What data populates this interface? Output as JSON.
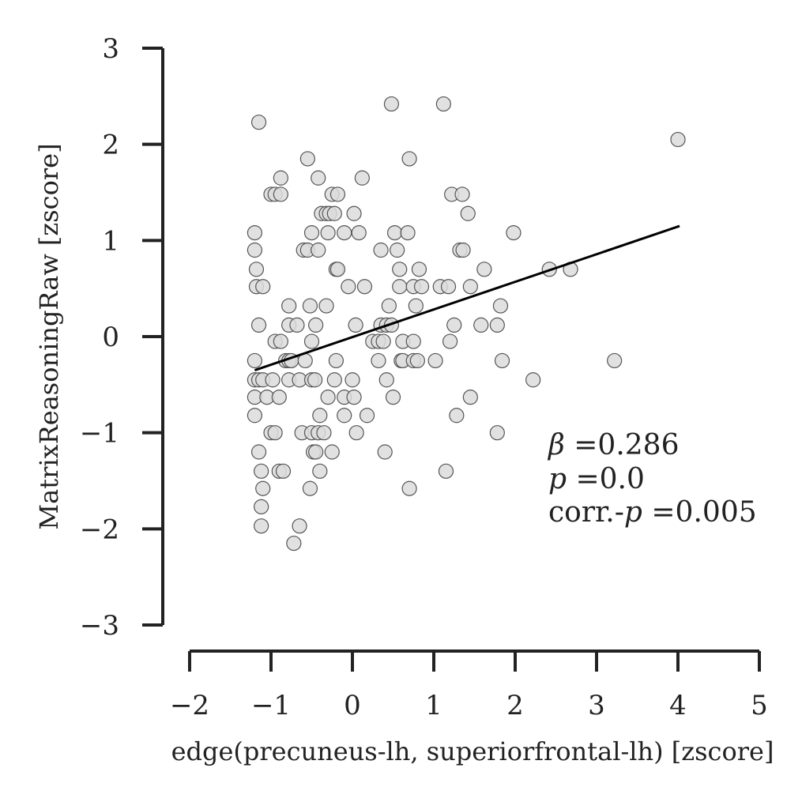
{
  "chart_data": {
    "type": "scatter",
    "xlabel": "edge(precuneus-lh, superiorfrontal-lh) [zscore]",
    "ylabel": "MatrixReasoningRaw [zscore]",
    "xlim": [
      -2,
      5
    ],
    "ylim": [
      -3,
      3
    ],
    "xticks": [
      -2,
      -1,
      0,
      1,
      2,
      3,
      4,
      5
    ],
    "yticks": [
      -3,
      -2,
      -1,
      0,
      1,
      2,
      3
    ],
    "xtick_labels": [
      "−2",
      "−1",
      "0",
      "1",
      "2",
      "3",
      "4",
      "5"
    ],
    "ytick_labels": [
      "−3",
      "−2",
      "−1",
      "0",
      "1",
      "2",
      "3"
    ],
    "regression_line": {
      "x": [
        -1.2,
        4.02
      ],
      "y": [
        -0.35,
        1.15
      ]
    },
    "annotation": {
      "beta_symbol": "β",
      "beta_value": " =0.286",
      "p_symbol": "p",
      "p_value": " =0.0",
      "corr_prefix": "corr.-",
      "corr_symbol": "p",
      "corr_value": " =0.005"
    },
    "colors": {
      "marker_fill": "#dcdcdc",
      "marker_edge": "#555555",
      "line": "#000000",
      "axis": "#222222"
    },
    "points": [
      [
        -1.2,
        1.08
      ],
      [
        -1.2,
        0.9
      ],
      [
        -1.18,
        0.7
      ],
      [
        -1.18,
        0.52
      ],
      [
        -1.15,
        0.12
      ],
      [
        -1.2,
        -0.25
      ],
      [
        -1.2,
        -0.45
      ],
      [
        -1.15,
        -0.45
      ],
      [
        -1.2,
        -0.63
      ],
      [
        -1.2,
        -0.82
      ],
      [
        -1.15,
        -1.2
      ],
      [
        -1.12,
        -1.4
      ],
      [
        -1.1,
        -1.58
      ],
      [
        -1.12,
        -1.77
      ],
      [
        -1.12,
        -1.97
      ],
      [
        -1.1,
        0.52
      ],
      [
        -1.15,
        2.23
      ],
      [
        -1.1,
        -0.45
      ],
      [
        -1.05,
        -0.63
      ],
      [
        -1.0,
        1.48
      ],
      [
        -1.0,
        -1.0
      ],
      [
        -0.98,
        -0.45
      ],
      [
        -0.95,
        1.48
      ],
      [
        -0.95,
        -0.05
      ],
      [
        -0.95,
        -1.0
      ],
      [
        -0.9,
        -0.63
      ],
      [
        -0.9,
        -1.4
      ],
      [
        -0.88,
        1.65
      ],
      [
        -0.88,
        1.48
      ],
      [
        -0.88,
        -0.05
      ],
      [
        -0.85,
        -1.4
      ],
      [
        -0.82,
        -0.25
      ],
      [
        -0.78,
        0.32
      ],
      [
        -0.78,
        0.12
      ],
      [
        -0.78,
        -0.25
      ],
      [
        -0.78,
        -0.45
      ],
      [
        -0.75,
        -0.25
      ],
      [
        -0.72,
        -2.15
      ],
      [
        -0.68,
        0.12
      ],
      [
        -0.65,
        -1.97
      ],
      [
        -0.65,
        -0.45
      ],
      [
        -0.62,
        -1.0
      ],
      [
        -0.6,
        0.9
      ],
      [
        -0.58,
        -0.25
      ],
      [
        -0.55,
        0.9
      ],
      [
        -0.55,
        1.85
      ],
      [
        -0.52,
        0.32
      ],
      [
        -0.52,
        -1.58
      ],
      [
        -0.5,
        -0.05
      ],
      [
        -0.5,
        -0.45
      ],
      [
        -0.5,
        -1.0
      ],
      [
        -0.5,
        1.08
      ],
      [
        -0.48,
        -1.2
      ],
      [
        -0.46,
        -0.45
      ],
      [
        -0.45,
        0.12
      ],
      [
        -0.45,
        -1.2
      ],
      [
        -0.42,
        1.65
      ],
      [
        -0.42,
        0.9
      ],
      [
        -0.42,
        -1.0
      ],
      [
        -0.4,
        -0.82
      ],
      [
        -0.4,
        -1.4
      ],
      [
        -0.38,
        1.28
      ],
      [
        -0.35,
        -1.0
      ],
      [
        -0.32,
        1.28
      ],
      [
        -0.32,
        0.32
      ],
      [
        -0.3,
        1.08
      ],
      [
        -0.3,
        -0.63
      ],
      [
        -0.28,
        1.28
      ],
      [
        -0.25,
        1.48
      ],
      [
        -0.25,
        -1.2
      ],
      [
        -0.22,
        1.28
      ],
      [
        -0.22,
        -0.45
      ],
      [
        -0.2,
        0.7
      ],
      [
        -0.18,
        1.48
      ],
      [
        -0.18,
        0.7
      ],
      [
        -0.2,
        -0.25
      ],
      [
        -0.1,
        1.08
      ],
      [
        -0.1,
        -0.63
      ],
      [
        -0.1,
        -0.82
      ],
      [
        -0.05,
        0.52
      ],
      [
        0.0,
        -0.45
      ],
      [
        0.02,
        1.28
      ],
      [
        0.02,
        -0.63
      ],
      [
        0.04,
        0.12
      ],
      [
        0.05,
        -1.0
      ],
      [
        0.08,
        1.08
      ],
      [
        0.12,
        1.65
      ],
      [
        0.15,
        0.52
      ],
      [
        0.18,
        -0.82
      ],
      [
        0.25,
        -0.05
      ],
      [
        0.32,
        -0.05
      ],
      [
        0.32,
        -0.25
      ],
      [
        0.35,
        0.9
      ],
      [
        0.35,
        0.12
      ],
      [
        0.38,
        -0.05
      ],
      [
        0.4,
        -1.2
      ],
      [
        0.42,
        0.12
      ],
      [
        0.42,
        -0.45
      ],
      [
        0.45,
        0.32
      ],
      [
        0.48,
        0.12
      ],
      [
        0.48,
        2.42
      ],
      [
        0.5,
        -0.63
      ],
      [
        0.52,
        1.08
      ],
      [
        0.55,
        0.9
      ],
      [
        0.58,
        0.7
      ],
      [
        0.58,
        0.52
      ],
      [
        0.6,
        -0.25
      ],
      [
        0.62,
        -0.05
      ],
      [
        0.62,
        -0.25
      ],
      [
        0.68,
        1.08
      ],
      [
        0.7,
        1.85
      ],
      [
        0.7,
        -1.58
      ],
      [
        0.75,
        0.52
      ],
      [
        0.75,
        -0.25
      ],
      [
        0.75,
        -0.05
      ],
      [
        0.78,
        0.32
      ],
      [
        0.8,
        -0.25
      ],
      [
        0.82,
        0.7
      ],
      [
        0.85,
        0.52
      ],
      [
        1.02,
        -0.25
      ],
      [
        1.08,
        0.52
      ],
      [
        1.12,
        2.42
      ],
      [
        1.15,
        -1.4
      ],
      [
        1.18,
        0.52
      ],
      [
        1.2,
        -0.05
      ],
      [
        1.22,
        1.48
      ],
      [
        1.25,
        0.12
      ],
      [
        1.28,
        -0.82
      ],
      [
        1.32,
        0.9
      ],
      [
        1.35,
        1.48
      ],
      [
        1.36,
        0.9
      ],
      [
        1.42,
        1.28
      ],
      [
        1.45,
        0.52
      ],
      [
        1.45,
        -0.63
      ],
      [
        1.58,
        0.12
      ],
      [
        1.62,
        0.7
      ],
      [
        1.78,
        0.12
      ],
      [
        1.78,
        -1.0
      ],
      [
        1.82,
        0.32
      ],
      [
        1.84,
        -0.25
      ],
      [
        1.98,
        1.08
      ],
      [
        2.22,
        -0.45
      ],
      [
        2.42,
        0.7
      ],
      [
        2.68,
        0.7
      ],
      [
        3.22,
        -0.25
      ],
      [
        4.0,
        2.05
      ]
    ]
  }
}
